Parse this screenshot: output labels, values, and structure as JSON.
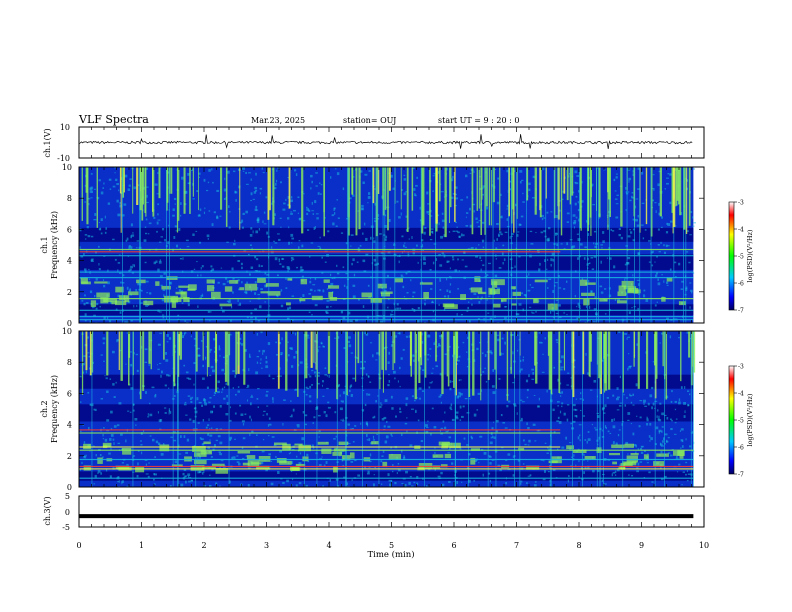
{
  "header": {
    "title": "VLF Spectra",
    "date": "Mar.23, 2025",
    "station": "station= OUJ",
    "start": "start UT =  9 : 20 : 0"
  },
  "chart_data": [
    {
      "type": "line",
      "name": "ch1-waveform",
      "ylabel": "ch.1(V)",
      "ylim": [
        -10,
        10
      ],
      "yticks": [
        "10",
        "-10"
      ],
      "xlim": [
        0,
        10
      ]
    },
    {
      "type": "heatmap",
      "name": "ch1-spectrogram",
      "ylabel_line1": "ch.1",
      "ylabel_line2": "Frequency (kHz)",
      "ylim": [
        0,
        10
      ],
      "yticks": [
        "0",
        "2",
        "4",
        "6",
        "8",
        "10"
      ],
      "xlim": [
        0,
        10
      ],
      "colorbar": {
        "label": "log(PSD)(V²/Hz)",
        "ticks": [
          "-3",
          "-4",
          "-5",
          "-6",
          "-7"
        ],
        "range": [
          -7,
          -3
        ]
      }
    },
    {
      "type": "heatmap",
      "name": "ch2-spectrogram",
      "ylabel_line1": "ch.2",
      "ylabel_line2": "Frequency (kHz)",
      "ylim": [
        0,
        10
      ],
      "yticks": [
        "0",
        "2",
        "4",
        "6",
        "8",
        "10"
      ],
      "xlim": [
        0,
        10
      ],
      "colorbar": {
        "label": "log(PSD)(V²/Hz)",
        "ticks": [
          "-3",
          "-4",
          "-5",
          "-6",
          "-7"
        ],
        "range": [
          -7,
          -3
        ]
      }
    },
    {
      "type": "line",
      "name": "ch3-waveform",
      "ylabel": "ch.3(V)",
      "ylim": [
        -5,
        5
      ],
      "yticks": [
        "5",
        "0",
        "-5"
      ],
      "xlim": [
        0,
        10
      ]
    }
  ],
  "xaxis": {
    "label": "Time (min)",
    "ticks": [
      "0",
      "1",
      "2",
      "3",
      "4",
      "5",
      "6",
      "7",
      "8",
      "9",
      "10"
    ],
    "data_end": 9.83
  },
  "colors": {
    "bg_deep": "#00007a",
    "bg_mid": "#0a2ec8",
    "noise": "#18b8e0",
    "emission": "#8cf05a",
    "line_red": "#ff3a2a",
    "line_yellow": "#ffff40"
  }
}
